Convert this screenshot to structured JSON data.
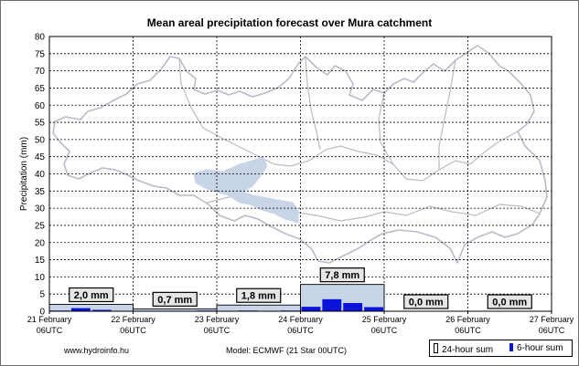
{
  "chart_data": {
    "type": "bar",
    "title": "Mean areal precipitation forecast over Mura catchment",
    "ylabel": "Precipitation (mm)",
    "ylim": [
      0,
      80
    ],
    "yticks": [
      0,
      5,
      10,
      15,
      20,
      25,
      30,
      35,
      40,
      45,
      50,
      55,
      60,
      65,
      70,
      75,
      80
    ],
    "xticks": [
      {
        "line1": "21 February",
        "line2": "06UTC"
      },
      {
        "line1": "22 February",
        "line2": "06UTC"
      },
      {
        "line1": "23 February",
        "line2": "06UTC"
      },
      {
        "line1": "24 February",
        "line2": "06UTC"
      },
      {
        "line1": "25 February",
        "line2": "06UTC"
      },
      {
        "line1": "26 February",
        "line2": "06UTC"
      },
      {
        "line1": "27 February",
        "line2": "06UTC"
      }
    ],
    "grid": true,
    "series": [
      {
        "name": "24-hour sum",
        "color": "#c8d5e6",
        "values": [
          2.0,
          0.7,
          1.8,
          7.8,
          0.0,
          0.0
        ],
        "labels": [
          "2,0 mm",
          "0,7 mm",
          "1,8 mm",
          "7,8 mm",
          "0,0 mm",
          "0,0 mm"
        ]
      },
      {
        "name": "6-hour sum",
        "color": "#0a14d8",
        "values": [
          0.2,
          0.9,
          0.4,
          0.1,
          0.0,
          0.0,
          0.0,
          0.2,
          0.0,
          0.2,
          0.1,
          0.2,
          1.3,
          3.5,
          2.4,
          1.2,
          0,
          0,
          0,
          0,
          0,
          0,
          0,
          0
        ]
      }
    ]
  },
  "footer": {
    "site": "www.hydroinfo.hu",
    "model": "Model:  ECMWF (21  Star 00UTC)"
  },
  "legend": {
    "daily": "24-hour sum",
    "sixhour": "6-hour sum"
  },
  "colors": {
    "catchment_outline": "#b8bcc6",
    "highlight_region": "#c8d5e6",
    "label_box": "#e6e6e6"
  }
}
